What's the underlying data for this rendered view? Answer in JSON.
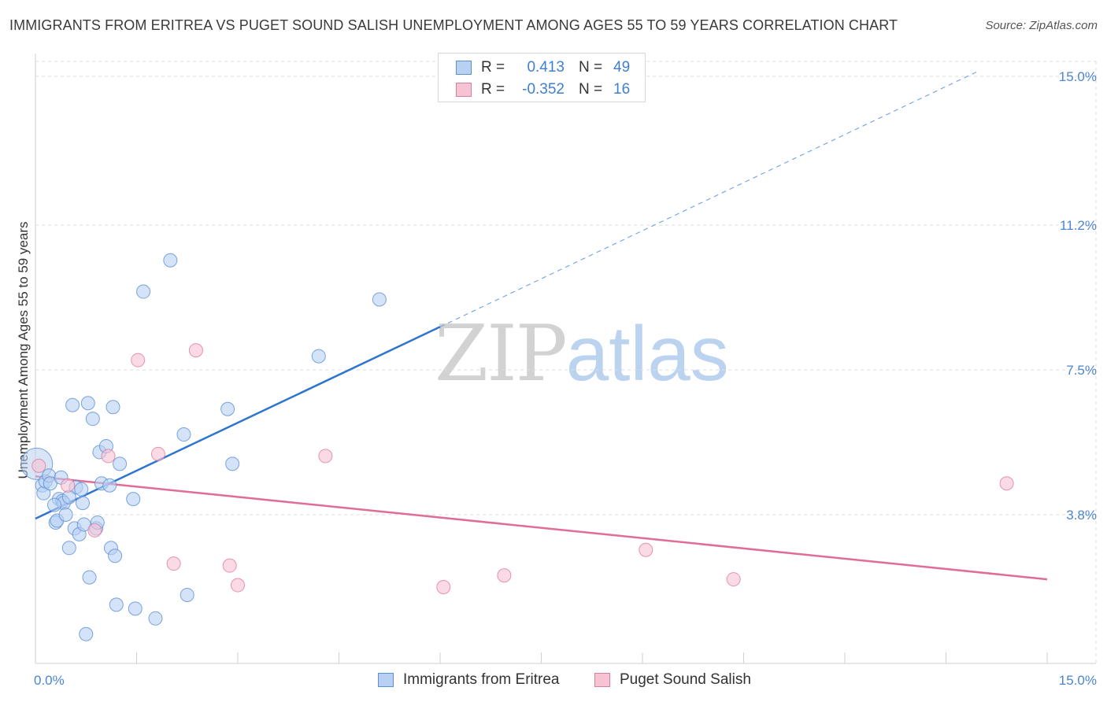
{
  "title": "IMMIGRANTS FROM ERITREA VS PUGET SOUND SALISH UNEMPLOYMENT AMONG AGES 55 TO 59 YEARS CORRELATION CHART",
  "source": "Source: ZipAtlas.com",
  "watermark": {
    "zip": "ZIP",
    "atlas": "atlas"
  },
  "legend": {
    "r_label": "R =",
    "n_label": "N =",
    "rows": [
      {
        "name": "Immigrants from Eritrea",
        "r": "0.413",
        "n": "49",
        "color": "#5b8fd6",
        "fill": "#b8d0f1"
      },
      {
        "name": "Puget Sound Salish",
        "r": "-0.352",
        "n": "16",
        "color": "#e07aa0",
        "fill": "#f6c3d3"
      }
    ]
  },
  "chart_data": {
    "type": "scatter",
    "title": "IMMIGRANTS FROM ERITREA VS PUGET SOUND SALISH UNEMPLOYMENT AMONG AGES 55 TO 59 YEARS CORRELATION CHART",
    "xlabel": "",
    "ylabel": "Unemployment Among Ages 55 to 59 years",
    "xlim": [
      0,
      15
    ],
    "ylim": [
      0,
      15
    ],
    "x_tick_labels": [
      "0.0%",
      "15.0%"
    ],
    "y_ticks": [
      3.8,
      7.5,
      11.2,
      15.0
    ],
    "y_tick_labels": [
      "3.8%",
      "7.5%",
      "11.2%",
      "15.0%"
    ],
    "grid": true,
    "series": [
      {
        "name": "Immigrants from Eritrea",
        "color": "#5b8fd6",
        "fill": "#b8d0f1",
        "points": [
          [
            0.02,
            5.1
          ],
          [
            0.1,
            4.55
          ],
          [
            0.12,
            4.35
          ],
          [
            0.15,
            4.65
          ],
          [
            0.2,
            4.8
          ],
          [
            0.22,
            4.6
          ],
          [
            0.3,
            3.6
          ],
          [
            0.32,
            3.65
          ],
          [
            0.35,
            4.2
          ],
          [
            0.4,
            4.15
          ],
          [
            0.42,
            4.1
          ],
          [
            0.45,
            3.8
          ],
          [
            0.5,
            2.95
          ],
          [
            0.55,
            6.6
          ],
          [
            0.58,
            3.45
          ],
          [
            0.6,
            4.5
          ],
          [
            0.65,
            3.3
          ],
          [
            0.7,
            4.1
          ],
          [
            0.72,
            3.55
          ],
          [
            0.75,
            0.75
          ],
          [
            0.78,
            6.65
          ],
          [
            0.8,
            2.2
          ],
          [
            0.85,
            6.25
          ],
          [
            0.9,
            3.45
          ],
          [
            0.92,
            3.6
          ],
          [
            0.95,
            5.4
          ],
          [
            0.98,
            4.6
          ],
          [
            1.05,
            5.55
          ],
          [
            1.1,
            4.55
          ],
          [
            1.12,
            2.95
          ],
          [
            1.15,
            6.55
          ],
          [
            1.18,
            2.75
          ],
          [
            1.2,
            1.5
          ],
          [
            1.25,
            5.1
          ],
          [
            1.45,
            4.2
          ],
          [
            1.48,
            1.4
          ],
          [
            1.6,
            9.5
          ],
          [
            1.78,
            1.15
          ],
          [
            2.0,
            10.3
          ],
          [
            2.2,
            5.85
          ],
          [
            2.25,
            1.75
          ],
          [
            2.85,
            6.5
          ],
          [
            2.92,
            5.1
          ],
          [
            4.2,
            7.85
          ],
          [
            5.1,
            9.3
          ],
          [
            0.5,
            4.25
          ],
          [
            0.38,
            4.75
          ],
          [
            0.28,
            4.05
          ],
          [
            0.68,
            4.45
          ]
        ]
      },
      {
        "name": "Puget Sound Salish",
        "color": "#e07aa0",
        "fill": "#f6c3d3",
        "points": [
          [
            0.05,
            5.05
          ],
          [
            0.48,
            4.55
          ],
          [
            0.88,
            3.4
          ],
          [
            1.08,
            5.3
          ],
          [
            1.52,
            7.75
          ],
          [
            1.82,
            5.35
          ],
          [
            2.05,
            2.55
          ],
          [
            2.38,
            8.0
          ],
          [
            2.88,
            2.5
          ],
          [
            3.0,
            2.0
          ],
          [
            4.3,
            5.3
          ],
          [
            6.05,
            1.95
          ],
          [
            6.95,
            2.25
          ],
          [
            9.05,
            2.9
          ],
          [
            10.35,
            2.15
          ],
          [
            14.4,
            4.6
          ]
        ]
      }
    ],
    "trendlines": [
      {
        "series": "Immigrants from Eritrea",
        "x0": 0,
        "y0": 3.7,
        "x1": 6.0,
        "y1": 8.6,
        "dashed_to_x": 14.0,
        "dashed_to_y": 15.15
      },
      {
        "series": "Puget Sound Salish",
        "x0": 0,
        "y0": 4.78,
        "x1": 15.0,
        "y1": 2.15
      }
    ]
  }
}
